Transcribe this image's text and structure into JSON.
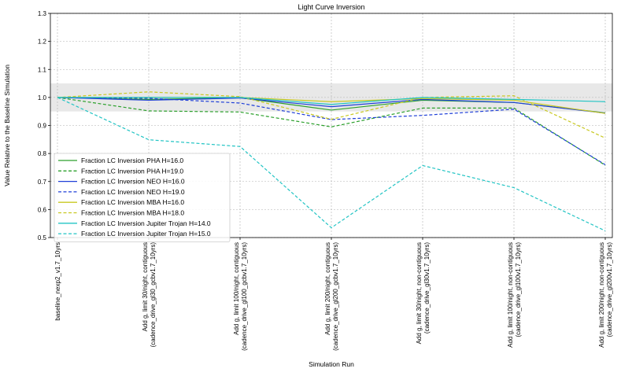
{
  "chart_data": {
    "type": "line",
    "title": "Light Curve Inversion",
    "xlabel": "Simulation Run",
    "ylabel": "Value Relative to the Baseline Simulation",
    "ylim": [
      0.5,
      1.3
    ],
    "yticks": [
      0.5,
      0.6,
      0.7,
      0.8,
      0.9,
      1.0,
      1.1,
      1.2,
      1.3
    ],
    "ytick_labels": [
      "0.5",
      "0.6",
      "0.7",
      "0.8",
      "0.9",
      "1.0",
      "1.1",
      "1.2",
      "1.3"
    ],
    "grid": true,
    "band": {
      "ymin": 0.95,
      "ymax": 1.05,
      "color": "#e8e8e8"
    },
    "legend_position": "lower-left",
    "categories": [
      [
        "baseline_nexp2_v1.7_10yrs"
      ],
      [
        "Add g, limit 30/night, contiguous",
        "(cadence_drive_gl30_gcbv1.7_10yrs)"
      ],
      [
        "Add g, limit 100/night, contiguous",
        "(cadence_drive_gl100_gcbv1.7_10yrs)"
      ],
      [
        "Add g, limit 200/night, contiguous",
        "(cadence_drive_gl200_gcbv1.7_10yrs)"
      ],
      [
        "Add g, limit 30/night, non-contiguous",
        "(cadence_drive_gl30v1.7_10yrs)"
      ],
      [
        "Add g, limit 100/night, non-contiguous",
        "(cadence_drive_gl100v1.7_10yrs)"
      ],
      [
        "Add g, limit 200/night, non-contiguous",
        "(cadence_drive_gl200v1.7_10yrs)"
      ]
    ],
    "series": [
      {
        "name": "Fraction LC Inversion PHA H=16.0",
        "color": "#2ca02c",
        "dash": false,
        "values": [
          1.0,
          0.993,
          0.999,
          0.955,
          0.99,
          0.982,
          0.945
        ]
      },
      {
        "name": "Fraction LC Inversion PHA H=19.0",
        "color": "#2ca02c",
        "dash": true,
        "values": [
          1.0,
          0.952,
          0.948,
          0.895,
          0.962,
          0.962,
          0.758
        ]
      },
      {
        "name": "Fraction LC Inversion NEO H=16.0",
        "color": "#1f3fd8",
        "dash": false,
        "values": [
          1.0,
          0.99,
          0.998,
          0.967,
          0.993,
          0.982,
          0.944
        ]
      },
      {
        "name": "Fraction LC Inversion NEO H=19.0",
        "color": "#1f3fd8",
        "dash": true,
        "values": [
          1.0,
          0.997,
          0.98,
          0.921,
          0.936,
          0.958,
          0.76
        ]
      },
      {
        "name": "Fraction LC Inversion MBA H=16.0",
        "color": "#c8c820",
        "dash": false,
        "values": [
          1.0,
          1.0,
          1.0,
          0.985,
          0.996,
          0.99,
          0.943
        ]
      },
      {
        "name": "Fraction LC Inversion MBA H=18.0",
        "color": "#c8c820",
        "dash": true,
        "values": [
          1.0,
          1.02,
          1.003,
          0.922,
          1.0,
          1.006,
          0.855
        ]
      },
      {
        "name": "Fraction LC Inversion Jupiter Trojan H=14.0",
        "color": "#22c4c4",
        "dash": false,
        "values": [
          1.0,
          1.0,
          1.0,
          0.975,
          1.0,
          0.993,
          0.985
        ]
      },
      {
        "name": "Fraction LC Inversion Jupiter Trojan H=15.0",
        "color": "#22c4c4",
        "dash": true,
        "values": [
          1.0,
          0.849,
          0.825,
          0.535,
          0.757,
          0.678,
          0.524
        ]
      }
    ]
  }
}
